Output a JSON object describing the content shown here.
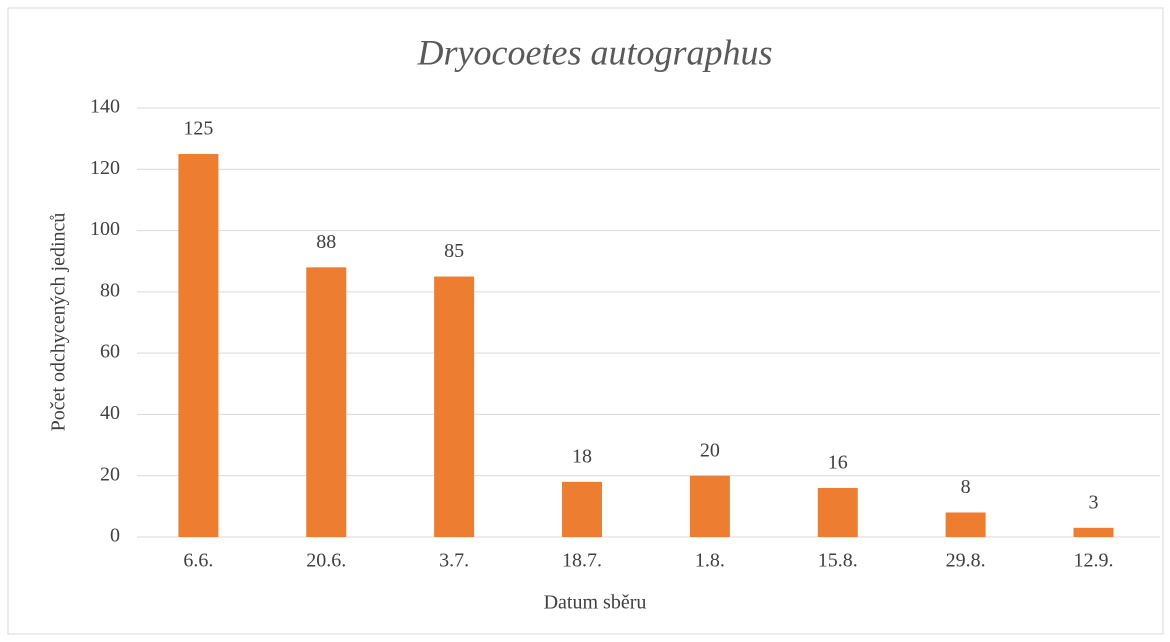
{
  "chart_data": {
    "type": "bar",
    "title": "Dryocoetes autographus",
    "x_label": "Datum sběru",
    "y_label": "Počet odchycených jedinců",
    "categories": [
      "6.6.",
      "20.6.",
      "3.7.",
      "18.7.",
      "1.8.",
      "15.8.",
      "29.8.",
      "12.9."
    ],
    "values": [
      125,
      88,
      85,
      18,
      20,
      16,
      8,
      3
    ],
    "color": "#ed7d31",
    "ylim": [
      0,
      140
    ],
    "yticks": [
      0,
      20,
      40,
      60,
      80,
      100,
      120,
      140
    ],
    "grid": true
  }
}
